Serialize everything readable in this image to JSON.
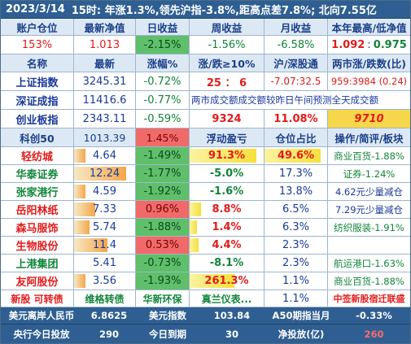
{
  "header": {
    "date": "2023/3/14",
    "summary": "15时: 年涨1.3%,领先沪指-3.8%,距高点差7.8%; 北向7.55亿"
  },
  "account_header": [
    "账户仓位",
    "最新净值",
    "日收益",
    "周收益",
    "月收益",
    "本年最高/低净值"
  ],
  "account_values": {
    "position": "153%",
    "nav": "1.013",
    "daily": "-2.15%",
    "weekly": "-1.56%",
    "monthly": "-6.58%",
    "year_high": "1.092",
    "sep": ":",
    "year_low": "0.975"
  },
  "index_header": [
    "名称",
    "最新",
    "涨幅%",
    "涨/跌≥10%",
    "沪/深股通",
    "两市涨/跌数(比)"
  ],
  "indices": [
    {
      "name": "上证指数",
      "value": "3245.31",
      "change": "-0.72%",
      "col4": "25 ： 6",
      "col5": "-7.07:32.5",
      "col6": "959:3984 (0.24)"
    },
    {
      "name": "深证成指",
      "value": "11416.6",
      "change": "-0.77%",
      "merged": "两市成交额成交额较昨日午间预测全天成交额"
    },
    {
      "name": "创业板指",
      "value": "2343.11",
      "change": "-0.59%",
      "col4": "9324",
      "col5": "11.08%",
      "col6": "9710"
    },
    {
      "name": "科创50",
      "value": "1013.39",
      "change": "1.45%",
      "col4": "浮动盈亏",
      "col5": "仓位占比",
      "col6": "操作/简评/板块"
    }
  ],
  "holdings": [
    {
      "name": "轻纺城",
      "price": "4.64",
      "change": "-1.49%",
      "pnl": "91.3%",
      "weight": "49.6%",
      "note": "商业百货-1.88%",
      "price_level": 0.18,
      "pnl_level": 0.9,
      "weight_level": 0.9
    },
    {
      "name": "华泰证券",
      "price": "12.24",
      "change": "-1.77%",
      "pnl": "-5.0%",
      "weight": "17.3%",
      "note": "证券-1.24%",
      "price_level": 0.85,
      "pnl_level": 0,
      "weight_level": 0
    },
    {
      "name": "张家港行",
      "price": "4.59",
      "change": "-1.92%",
      "pnl": "-1.6%",
      "weight": "13.8%",
      "note": "4.62元少量减仓",
      "price_level": 0.18,
      "pnl_level": 0,
      "weight_level": 0
    },
    {
      "name": "岳阳林纸",
      "price": "7.33",
      "change": "0.96%",
      "pnl": "8.8%",
      "weight": "6.5%",
      "note": "7.29元少量减仓",
      "price_level": 0.35,
      "pnl_level": 0.15,
      "weight_level": 0
    },
    {
      "name": "森马服饰",
      "price": "5.74",
      "change": "-1.88%",
      "pnl": "1.4%",
      "weight": "6.3%",
      "note": "纺织服装-1.91%",
      "price_level": 0.25,
      "pnl_level": 0.1,
      "weight_level": 0
    },
    {
      "name": "生物股份",
      "price": "11.4",
      "change": "0.53%",
      "pnl": "4.4%",
      "weight": "2.3%",
      "note": "",
      "price_level": 0.55,
      "pnl_level": 0.12,
      "weight_level": 0
    },
    {
      "name": "上港集团",
      "price": "5.41",
      "change": "-0.73%",
      "pnl": "-8.1%",
      "weight": "2.3%",
      "note": "航运港口-1.63%",
      "price_level": 0,
      "pnl_level": 0,
      "weight_level": 0
    },
    {
      "name": "友阿股份",
      "price": "3.56",
      "change": "-1.93%",
      "pnl": "261.3%",
      "weight": "1.1%",
      "note": "商业百货-1.88%",
      "price_level": 0.18,
      "pnl_level": 0.6,
      "weight_level": 0
    }
  ],
  "ipo_row": {
    "label": "新股 可转债",
    "c2": "维格转债",
    "c3": "华新环保",
    "c4": "真兰仪表...",
    "c5": "1.1%",
    "c6": "中签新股宿迁联盛"
  },
  "footer1": {
    "l1": "美元离岸人民币",
    "v1": "6.8625",
    "l2": "美元指数",
    "v2": "103.84",
    "l3": "A50期指当月",
    "v3": "-0.33%"
  },
  "footer2": {
    "l1": "央行今日投放",
    "v1": "290",
    "l2": "今日到期",
    "v2": "30",
    "l3": "净投放(亿)",
    "v3": "260"
  },
  "colors": {
    "header_bg": "#2f5f92",
    "red": "#e21b1b",
    "green": "#10853a",
    "blue": "#1a3a9a",
    "cell_green": "#5fbf6a",
    "cell_red": "#f06a6a"
  }
}
